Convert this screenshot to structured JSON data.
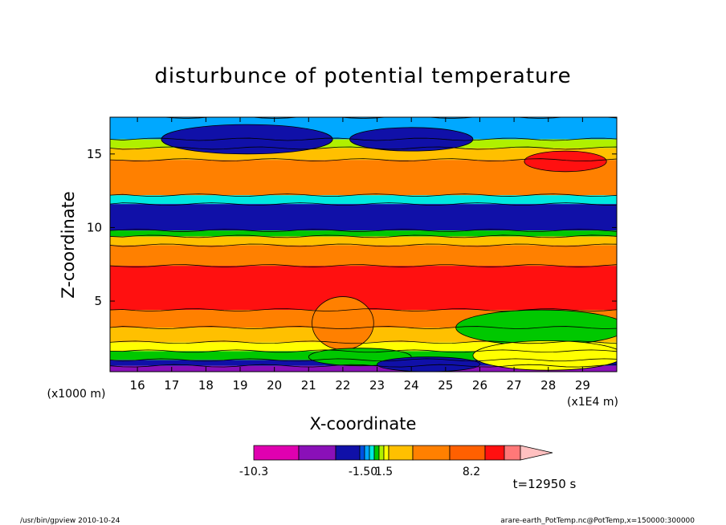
{
  "chart_data": {
    "type": "heatmap",
    "title": "disturbunce of potential temperature",
    "xlabel": "X-coordinate",
    "ylabel": "Z-coordinate",
    "x_unit": "(x1E4 m)",
    "y_unit": "(x1000 m)",
    "xlim": [
      15.2,
      30.0
    ],
    "ylim": [
      0.2,
      17.5
    ],
    "x_ticks": [
      "16",
      "17",
      "18",
      "19",
      "20",
      "21",
      "22",
      "23",
      "24",
      "25",
      "26",
      "27",
      "28",
      "29"
    ],
    "y_ticks": [
      "5",
      "10",
      "15"
    ],
    "colorbar": {
      "colors": [
        "#e000b0",
        "#8a10b8",
        "#1010a8",
        "#0050e0",
        "#00a8ff",
        "#00e8e0",
        "#00c800",
        "#b0f000",
        "#ffff00",
        "#ffc000",
        "#ff8000",
        "#ff6000",
        "#ff1010",
        "#ff7878",
        "#ffc0c0"
      ],
      "labels": [
        "-10.3",
        "-1.50",
        "1.5",
        "8.2"
      ]
    },
    "time_label": "t=12950 s",
    "bands": [
      {
        "z_bottom": 0.2,
        "z_top": 0.6,
        "color": "#8a10b8"
      },
      {
        "z_bottom": 0.6,
        "z_top": 1.0,
        "color": "#1010a8"
      },
      {
        "z_bottom": 1.0,
        "z_top": 1.6,
        "color": "#00c800"
      },
      {
        "z_bottom": 1.6,
        "z_top": 2.2,
        "color": "#ffff00"
      },
      {
        "z_bottom": 2.2,
        "z_top": 3.2,
        "color": "#ffc000"
      },
      {
        "z_bottom": 3.2,
        "z_top": 4.4,
        "color": "#ff8000"
      },
      {
        "z_bottom": 4.4,
        "z_top": 7.4,
        "color": "#ff1010"
      },
      {
        "z_bottom": 7.4,
        "z_top": 8.8,
        "color": "#ff8000"
      },
      {
        "z_bottom": 8.8,
        "z_top": 9.4,
        "color": "#ffc000"
      },
      {
        "z_bottom": 9.4,
        "z_top": 9.8,
        "color": "#00c800"
      },
      {
        "z_bottom": 9.8,
        "z_top": 11.6,
        "color": "#1010a8"
      },
      {
        "z_bottom": 11.6,
        "z_top": 12.2,
        "color": "#00e8e0"
      },
      {
        "z_bottom": 12.2,
        "z_top": 14.6,
        "color": "#ff8000"
      },
      {
        "z_bottom": 14.6,
        "z_top": 15.4,
        "color": "#ffc000"
      },
      {
        "z_bottom": 15.4,
        "z_top": 16.0,
        "color": "#b0f000"
      },
      {
        "z_bottom": 16.0,
        "z_top": 17.5,
        "color": "#00a8ff"
      }
    ],
    "features": [
      {
        "x": 19.2,
        "z": 16.0,
        "rx": 2.5,
        "rz": 1.0,
        "color": "#1010a8"
      },
      {
        "x": 24.0,
        "z": 16.0,
        "rx": 1.8,
        "rz": 0.8,
        "color": "#1010a8"
      },
      {
        "x": 28.5,
        "z": 14.5,
        "rx": 1.2,
        "rz": 0.7,
        "color": "#ff1010"
      },
      {
        "x": 27.8,
        "z": 3.2,
        "rx": 2.5,
        "rz": 1.2,
        "color": "#00c800"
      },
      {
        "x": 28.0,
        "z": 1.3,
        "rx": 2.2,
        "rz": 1.0,
        "color": "#ffff00"
      },
      {
        "x": 22.0,
        "z": 3.5,
        "rx": 0.9,
        "rz": 1.8,
        "color": "#ff8000"
      },
      {
        "x": 22.5,
        "z": 1.2,
        "rx": 1.5,
        "rz": 0.6,
        "color": "#00c800"
      },
      {
        "x": 24.5,
        "z": 0.7,
        "rx": 1.5,
        "rz": 0.5,
        "color": "#1010a8"
      }
    ]
  },
  "footer": {
    "left": "/usr/bin/gpview   2010-10-24",
    "right": "arare-earth_PotTemp.nc@PotTemp,x=150000:300000"
  }
}
